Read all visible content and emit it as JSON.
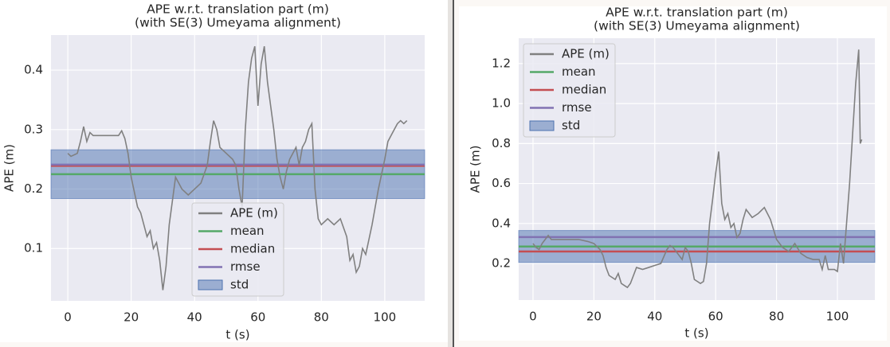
{
  "chart_data": [
    {
      "type": "line",
      "title": "APE w.r.t. translation part (m)",
      "subtitle": "(with SE(3) Umeyama alignment)",
      "x_label": "t (s)",
      "y_label": "APE (m)",
      "grid": true,
      "legend": "lower center",
      "xlim": [
        -5.3,
        112.6
      ],
      "ylim": [
        0.012,
        0.459
      ],
      "xticks": [
        0,
        20,
        40,
        60,
        80,
        100
      ],
      "yticks": [
        0.1,
        0.2,
        0.3,
        0.4
      ],
      "x": [
        0,
        1,
        3,
        4,
        5,
        6,
        7,
        8,
        12,
        16,
        17,
        18,
        19,
        20,
        22,
        23,
        25,
        26,
        27,
        28,
        29,
        30,
        31,
        32,
        33,
        34,
        35,
        36,
        38,
        40,
        42,
        44,
        45,
        46,
        47,
        48,
        50,
        52,
        53,
        54,
        55,
        56,
        57,
        58,
        59,
        60,
        61,
        62,
        63,
        64,
        65,
        66,
        67,
        68,
        69,
        70,
        72,
        73,
        74,
        75,
        76,
        77,
        78,
        79,
        80,
        82,
        84,
        86,
        88,
        89,
        90,
        91,
        92,
        93,
        94,
        96,
        98,
        100,
        101,
        102,
        103,
        104,
        105,
        106,
        107
      ],
      "series": [
        {
          "name": "APE (m)",
          "color": "#808080",
          "values": [
            0.26,
            0.255,
            0.26,
            0.28,
            0.305,
            0.28,
            0.295,
            0.29,
            0.29,
            0.29,
            0.298,
            0.285,
            0.26,
            0.22,
            0.17,
            0.16,
            0.12,
            0.13,
            0.1,
            0.11,
            0.08,
            0.03,
            0.07,
            0.14,
            0.18,
            0.22,
            0.21,
            0.2,
            0.19,
            0.2,
            0.21,
            0.24,
            0.28,
            0.315,
            0.3,
            0.27,
            0.26,
            0.25,
            0.24,
            0.2,
            0.17,
            0.3,
            0.38,
            0.42,
            0.44,
            0.34,
            0.41,
            0.44,
            0.38,
            0.34,
            0.3,
            0.25,
            0.22,
            0.2,
            0.23,
            0.25,
            0.27,
            0.24,
            0.27,
            0.28,
            0.3,
            0.31,
            0.2,
            0.15,
            0.14,
            0.15,
            0.14,
            0.15,
            0.12,
            0.08,
            0.09,
            0.06,
            0.07,
            0.1,
            0.09,
            0.14,
            0.2,
            0.25,
            0.28,
            0.29,
            0.3,
            0.31,
            0.315,
            0.31,
            0.315
          ]
        }
      ],
      "hlines": [
        {
          "name": "mean",
          "color": "#55a868",
          "value": 0.225
        },
        {
          "name": "median",
          "color": "#c44e52",
          "value": 0.239
        },
        {
          "name": "rmse",
          "color": "#8172b2",
          "value": 0.241
        }
      ],
      "band": {
        "name": "std",
        "color": "#4c72b0",
        "value": 0.041
      }
    },
    {
      "type": "line",
      "title": "APE w.r.t. translation part (m)",
      "subtitle": "(with SE(3) Umeyama alignment)",
      "x_label": "t (s)",
      "y_label": "APE (m)",
      "grid": true,
      "legend": "upper left",
      "xlim": [
        -4.7,
        112.3
      ],
      "ylim": [
        0.017,
        1.327
      ],
      "xticks": [
        0,
        20,
        40,
        60,
        80,
        100
      ],
      "yticks": [
        0.2,
        0.4,
        0.6,
        0.8,
        {
          "value": 1,
          "label": "1.0"
        },
        1.2
      ],
      "x": [
        0,
        1,
        2,
        3,
        4,
        5,
        6,
        10,
        15,
        18,
        20,
        22,
        23,
        24,
        25,
        26,
        27,
        28,
        29,
        30,
        31,
        32,
        33,
        34,
        36,
        38,
        40,
        42,
        44,
        45,
        46,
        48,
        49,
        50,
        51,
        52,
        53,
        54,
        55,
        56,
        57,
        58,
        59,
        60,
        61,
        62,
        63,
        64,
        65,
        66,
        67,
        68,
        69,
        70,
        72,
        74,
        76,
        78,
        80,
        82,
        84,
        86,
        88,
        90,
        92,
        94,
        95,
        96,
        97,
        99,
        100,
        101,
        102,
        103,
        104,
        105,
        106,
        107,
        107.5,
        108
      ],
      "series": [
        {
          "name": "APE (m)",
          "color": "#808080",
          "values": [
            0.3,
            0.28,
            0.27,
            0.3,
            0.32,
            0.34,
            0.32,
            0.32,
            0.32,
            0.31,
            0.3,
            0.27,
            0.24,
            0.18,
            0.14,
            0.13,
            0.12,
            0.15,
            0.1,
            0.09,
            0.08,
            0.1,
            0.14,
            0.18,
            0.17,
            0.18,
            0.19,
            0.2,
            0.27,
            0.29,
            0.28,
            0.24,
            0.22,
            0.28,
            0.26,
            0.2,
            0.12,
            0.11,
            0.1,
            0.11,
            0.2,
            0.4,
            0.52,
            0.65,
            0.76,
            0.5,
            0.42,
            0.45,
            0.38,
            0.4,
            0.33,
            0.35,
            0.42,
            0.47,
            0.43,
            0.45,
            0.48,
            0.42,
            0.32,
            0.28,
            0.26,
            0.3,
            0.25,
            0.23,
            0.22,
            0.22,
            0.17,
            0.24,
            0.17,
            0.17,
            0.16,
            0.3,
            0.2,
            0.4,
            0.6,
            0.85,
            1.1,
            1.27,
            0.8,
            0.82
          ]
        }
      ],
      "hlines": [
        {
          "name": "mean",
          "color": "#55a868",
          "value": 0.285
        },
        {
          "name": "median",
          "color": "#c44e52",
          "value": 0.26
        },
        {
          "name": "rmse",
          "color": "#8172b2",
          "value": 0.332
        }
      ],
      "band": {
        "name": "std",
        "color": "#4c72b0",
        "value": 0.08
      }
    }
  ]
}
